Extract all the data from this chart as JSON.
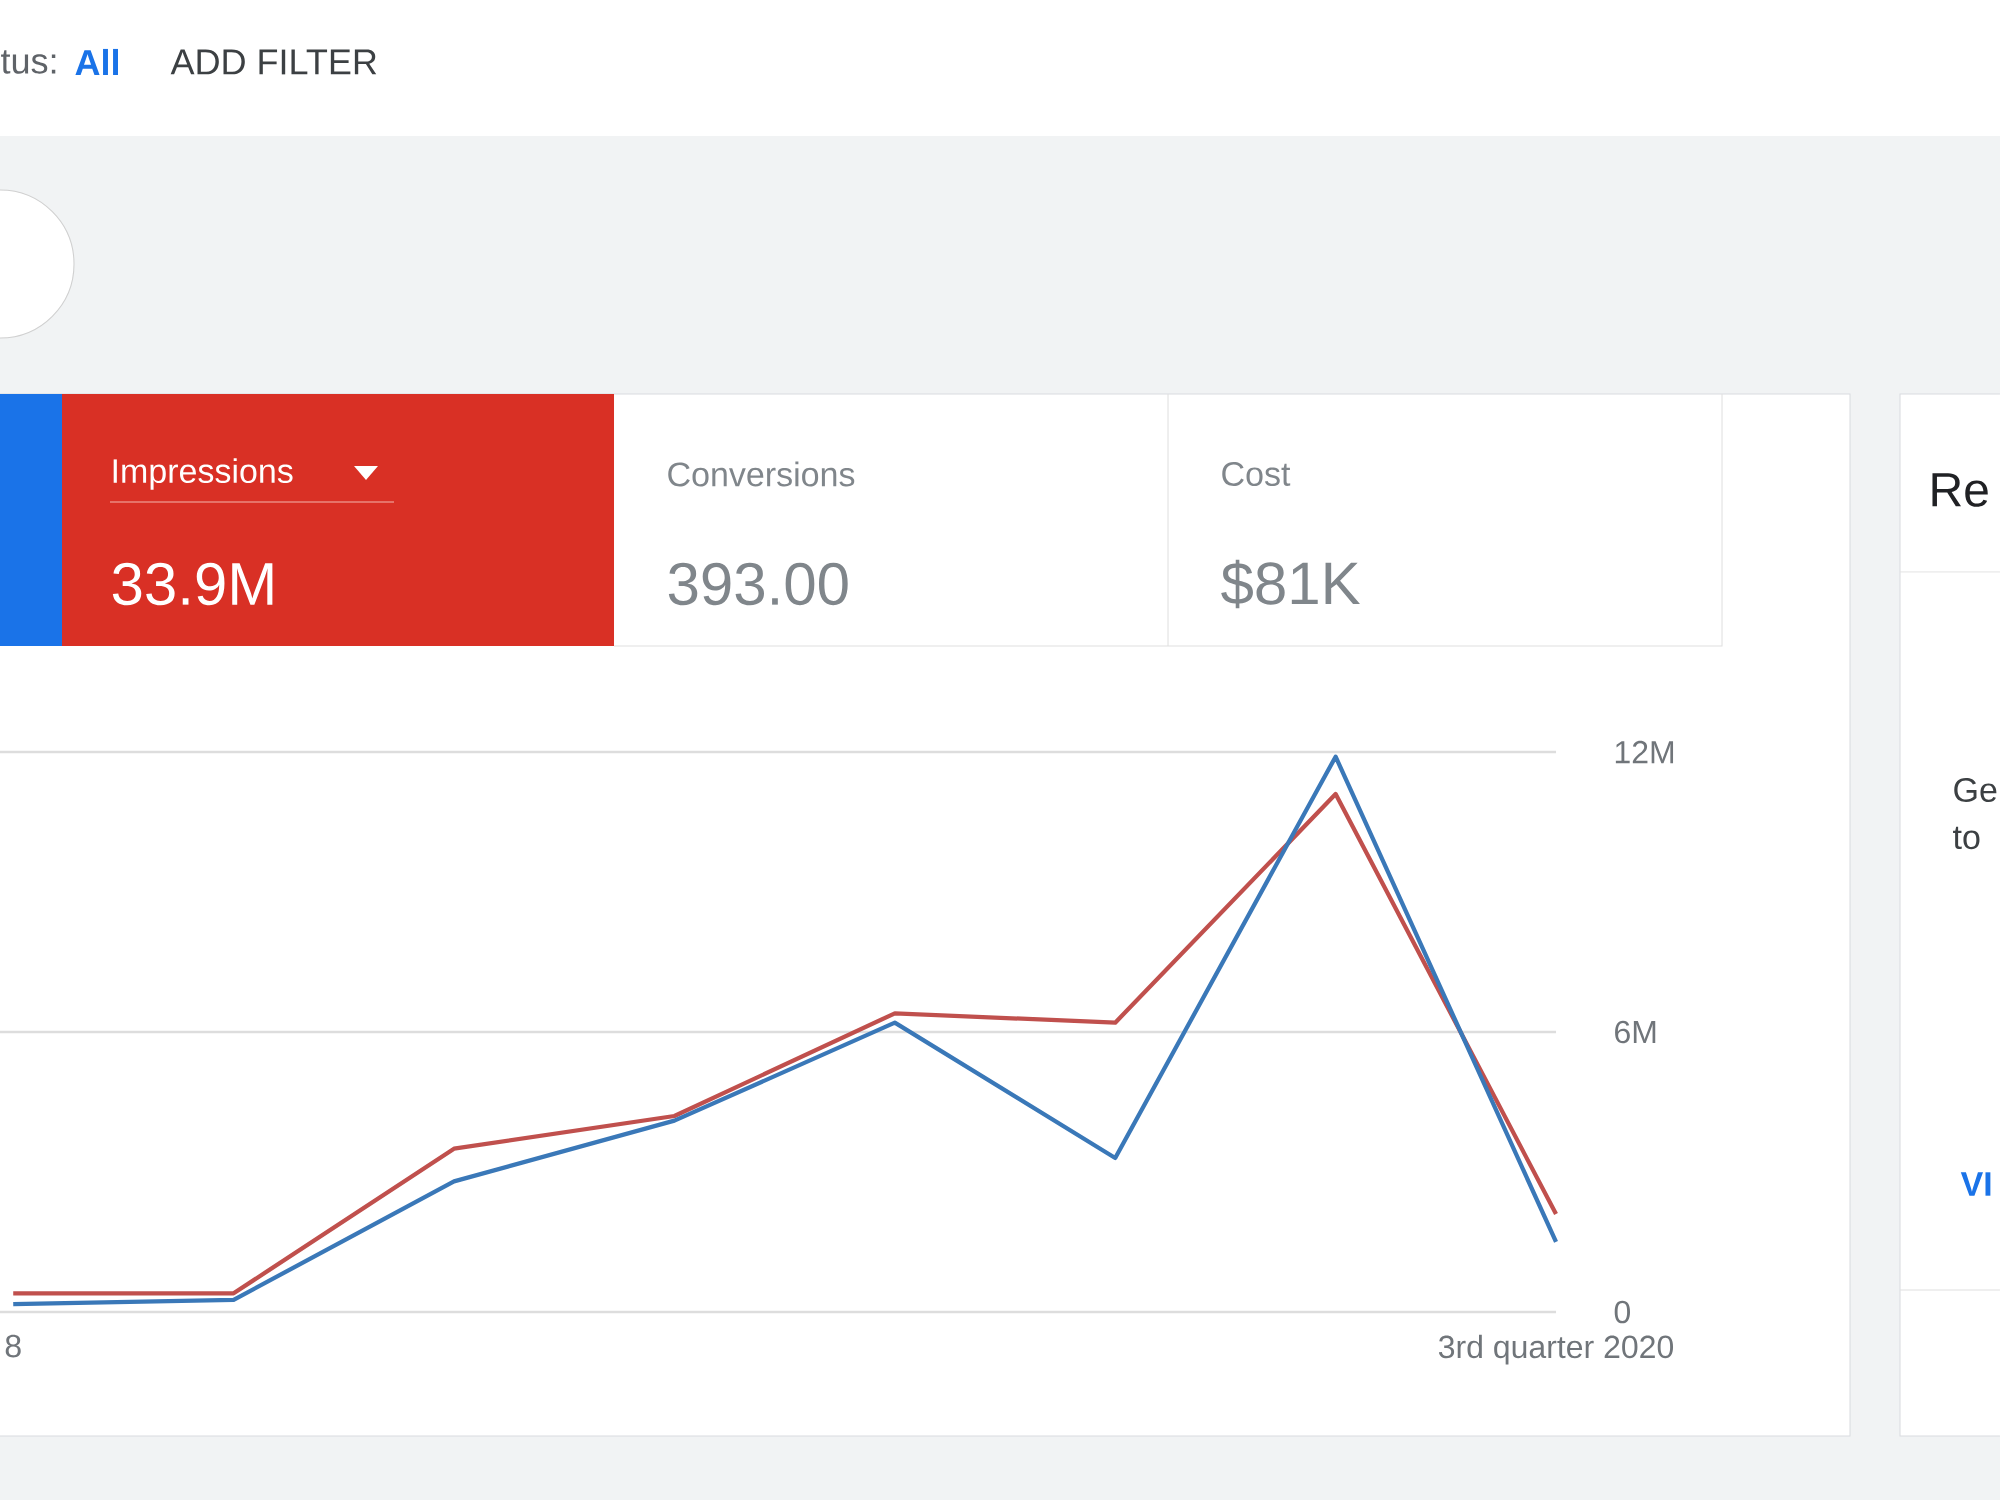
{
  "chart_data": {
    "type": "line",
    "categories": [
      "8",
      null,
      null,
      null,
      null,
      null,
      null,
      "3rd quarter 2020"
    ],
    "series": [
      {
        "color": "#c0504d",
        "values": [
          400000,
          400000,
          3500000,
          4200000,
          6400000,
          6200000,
          11100000,
          2100000
        ]
      },
      {
        "color": "#3a78b8",
        "values": [
          170000,
          260000,
          2800000,
          4100000,
          6200000,
          3300000,
          11900000,
          1500000
        ]
      }
    ],
    "ylim": [
      0,
      12000000
    ],
    "yticks": [
      0,
      {
        "value": 6000000,
        "label": "6M"
      },
      {
        "value": 12000000,
        "label": "12M"
      }
    ],
    "grid": "y",
    "marker": "none",
    "line_style": "solid",
    "annotations": [
      "tus:",
      "All",
      "ADD FILTER",
      "Impressions",
      "33.9M",
      "Conversions",
      "393.00",
      "Cost",
      "$81K",
      "Re",
      "Ge",
      "to",
      "VI"
    ]
  }
}
